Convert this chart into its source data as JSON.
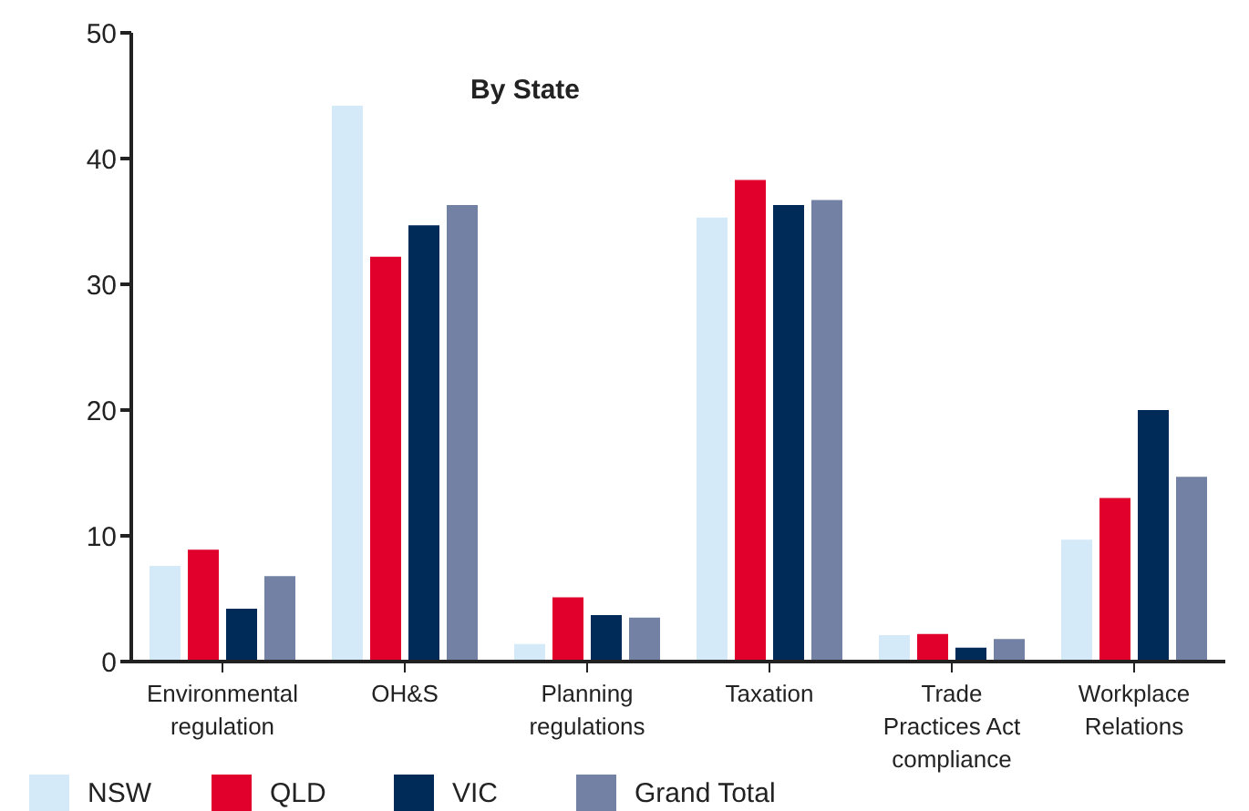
{
  "chart_data": {
    "type": "bar",
    "title": "By State",
    "categories": [
      "Environmental regulation",
      "OH&S",
      "Planning regulations",
      "Taxation",
      "Trade Practices Act compliance",
      "Workplace Relations"
    ],
    "series": [
      {
        "name": "NSW",
        "color": "#d5eaf8",
        "values": [
          7.6,
          44.2,
          1.4,
          35.3,
          2.1,
          9.7
        ]
      },
      {
        "name": "QLD",
        "color": "#e0002b",
        "values": [
          8.9,
          32.2,
          5.1,
          38.3,
          2.2,
          13.0
        ]
      },
      {
        "name": "VIC",
        "color": "#002a57",
        "values": [
          4.2,
          34.7,
          3.7,
          36.3,
          1.1,
          20.0
        ]
      },
      {
        "name": "Grand Total",
        "color": "#7382a4",
        "values": [
          6.8,
          36.3,
          3.5,
          36.7,
          1.8,
          14.7
        ]
      }
    ],
    "ylim": [
      0,
      50
    ],
    "yticks": [
      0,
      10,
      20,
      30,
      40,
      50
    ],
    "grid": false,
    "legend": "bottom"
  }
}
